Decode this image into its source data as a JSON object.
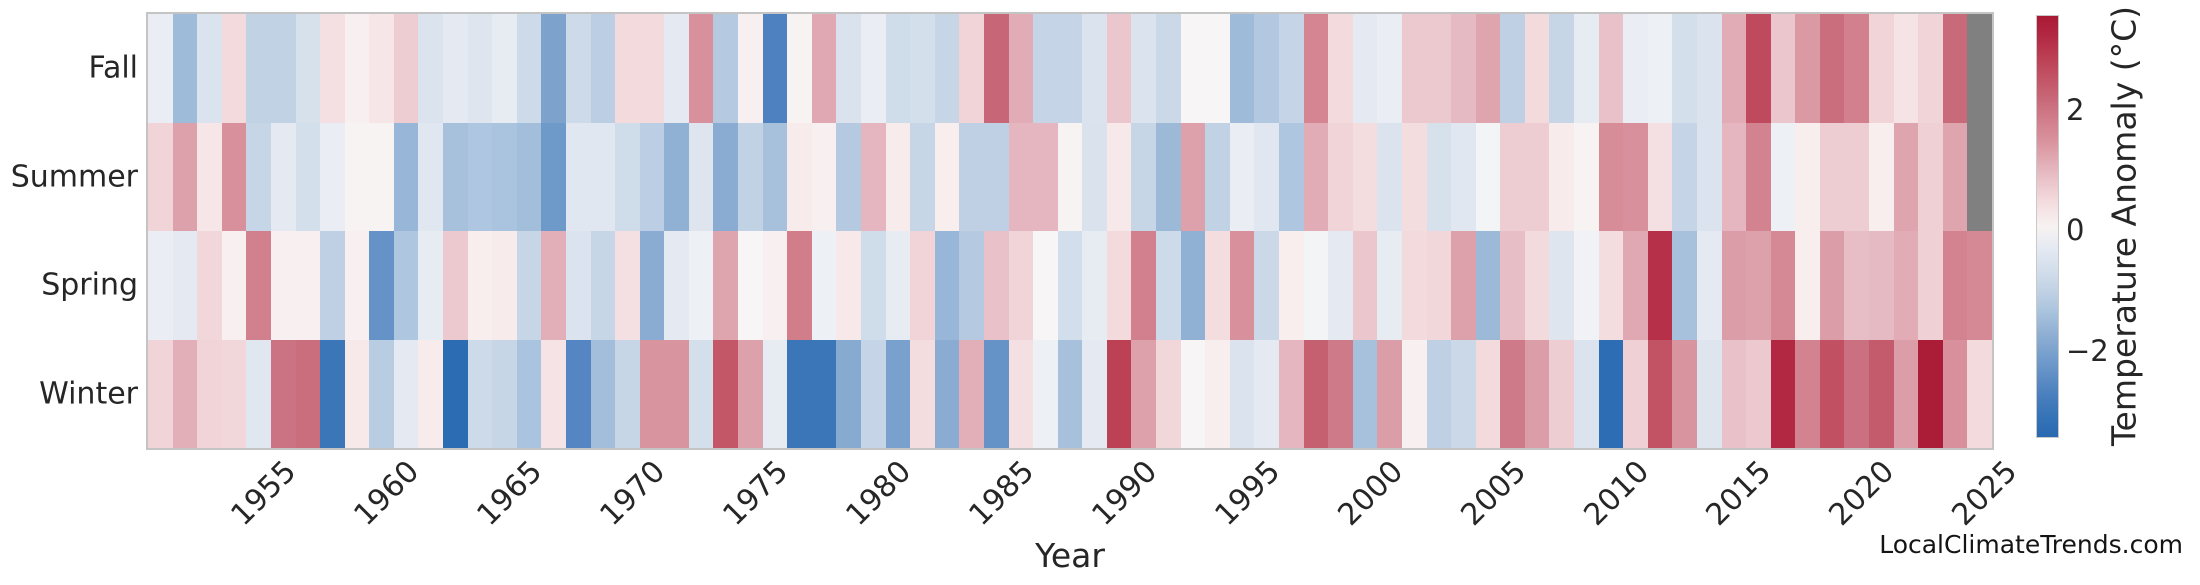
{
  "watermark": "LocalClimateTrends.com",
  "colors": {
    "background": "#ffffff",
    "axis_text": "#262626",
    "plot_border": "#c4c4c4",
    "missing_cell": "#808080"
  },
  "chart_data": {
    "type": "heatmap",
    "xlabel": "Year",
    "rows": [
      "Fall",
      "Summer",
      "Spring",
      "Winter"
    ],
    "year_start": 1951,
    "year_end": 2025,
    "x_ticks": [
      1955,
      1960,
      1965,
      1970,
      1975,
      1980,
      1985,
      1990,
      1995,
      2000,
      2005,
      2010,
      2015,
      2020,
      2025
    ],
    "colorbar": {
      "label": "Temperature Anomaly (°C)",
      "ticks": [
        "2",
        "0",
        "−2"
      ],
      "tick_values": [
        2,
        0,
        -2
      ],
      "vmax": 3.57,
      "vmin": -3.45,
      "missing_color": "#808080"
    },
    "legend_position": "right",
    "grid": false,
    "series": [
      {
        "name": "Fall",
        "values": [
          -0.2,
          -1.5,
          -0.5,
          0.5,
          -1.0,
          -1.0,
          -0.6,
          0.4,
          0.1,
          0.3,
          0.7,
          -0.5,
          -0.3,
          -0.45,
          -0.25,
          -0.8,
          -2.0,
          -0.8,
          -1.1,
          0.5,
          0.5,
          -0.3,
          1.5,
          -1.2,
          0.1,
          -2.7,
          0.05,
          1.2,
          -0.55,
          -0.2,
          -0.75,
          -0.65,
          -0.9,
          0.6,
          2.2,
          1.15,
          -0.95,
          -0.95,
          -0.5,
          0.8,
          -0.5,
          -0.85,
          0.0,
          0.0,
          -1.5,
          -1.25,
          -0.95,
          1.7,
          0.5,
          -0.3,
          -0.2,
          0.75,
          0.75,
          0.95,
          1.25,
          -1.05,
          0.5,
          -0.9,
          -0.25,
          0.85,
          -0.2,
          -0.15,
          -0.65,
          -0.5,
          1.15,
          2.7,
          0.8,
          1.4,
          2.1,
          1.8,
          0.6,
          0.35,
          0.6,
          2.15,
          null
        ]
      },
      {
        "name": "Summer",
        "values": [
          0.6,
          1.3,
          0.3,
          1.5,
          -0.9,
          -0.3,
          -0.65,
          -0.2,
          0.05,
          0.05,
          -1.6,
          -0.4,
          -1.4,
          -1.3,
          -1.35,
          -1.45,
          -2.2,
          -0.4,
          -0.4,
          -0.75,
          -1.1,
          -1.7,
          -0.45,
          -1.8,
          -1.0,
          -1.4,
          0.2,
          0.1,
          -1.2,
          1.0,
          0.2,
          -0.9,
          0.15,
          -1.05,
          -1.05,
          1.0,
          1.0,
          0.05,
          -0.55,
          0.25,
          -0.9,
          -1.55,
          1.3,
          -1.0,
          -0.2,
          -0.4,
          -1.3,
          1.15,
          0.6,
          0.45,
          -0.5,
          0.45,
          -0.6,
          -0.4,
          -0.05,
          0.7,
          0.7,
          0.2,
          0.05,
          1.55,
          1.5,
          0.4,
          -0.95,
          -0.5,
          1.0,
          1.75,
          -0.15,
          0.15,
          0.7,
          0.7,
          0.15,
          1.25,
          0.65,
          1.25,
          null
        ]
      },
      {
        "name": "Spring",
        "values": [
          -0.2,
          -0.3,
          0.55,
          0.1,
          1.8,
          0.1,
          0.1,
          -1.05,
          0.1,
          -2.35,
          -1.3,
          -0.25,
          0.75,
          0.15,
          0.2,
          -0.9,
          1.1,
          -0.5,
          -0.9,
          0.4,
          -1.8,
          -0.3,
          -0.15,
          1.25,
          0.0,
          0.1,
          1.85,
          -0.15,
          0.25,
          -0.75,
          -0.25,
          0.6,
          -1.6,
          -1.2,
          0.85,
          0.6,
          0.0,
          -0.7,
          -0.25,
          0.5,
          1.8,
          -0.8,
          -1.7,
          0.45,
          1.5,
          -0.85,
          0.15,
          -0.05,
          -0.3,
          0.8,
          -0.25,
          0.5,
          0.55,
          1.3,
          -1.55,
          0.9,
          0.5,
          -0.45,
          -0.1,
          0.45,
          1.2,
          3.1,
          -1.4,
          -0.3,
          1.35,
          1.3,
          1.6,
          0.15,
          1.35,
          0.9,
          0.95,
          1.15,
          0.65,
          1.75,
          1.6
        ]
      },
      {
        "name": "Winter",
        "values": [
          0.6,
          1.1,
          0.6,
          0.55,
          -0.4,
          2.0,
          2.1,
          -3.0,
          0.25,
          -1.15,
          -0.3,
          0.2,
          -3.4,
          -0.8,
          -0.9,
          -1.35,
          0.35,
          -2.6,
          -1.45,
          -0.9,
          1.45,
          1.45,
          -0.65,
          2.5,
          1.3,
          -0.25,
          -3.0,
          -3.0,
          -1.85,
          -0.95,
          -2.05,
          0.45,
          -1.8,
          1.1,
          -2.35,
          0.4,
          -0.15,
          -1.4,
          -0.3,
          2.85,
          1.3,
          0.55,
          0.0,
          0.15,
          -0.5,
          -0.3,
          1.0,
          2.3,
          1.9,
          -1.4,
          1.35,
          0.1,
          -1.05,
          -0.85,
          0.5,
          1.9,
          1.35,
          0.7,
          -0.5,
          -3.35,
          0.65,
          2.55,
          1.45,
          -0.45,
          0.85,
          0.75,
          3.25,
          1.75,
          2.6,
          2.05,
          2.4,
          1.35,
          3.5,
          1.5,
          0.5
        ]
      }
    ],
    "palette_stops": [
      [
        -3.6,
        "#2160aa"
      ],
      [
        -3.4,
        "#2b6cb3"
      ],
      [
        -3.0,
        "#3a76b8"
      ],
      [
        -2.6,
        "#5585c2"
      ],
      [
        -2.2,
        "#6e9aca"
      ],
      [
        -1.9,
        "#84a7cf"
      ],
      [
        -1.6,
        "#98b6d7"
      ],
      [
        -1.3,
        "#aec6df"
      ],
      [
        -1.0,
        "#c2d2e5"
      ],
      [
        -0.75,
        "#cfdcea"
      ],
      [
        -0.55,
        "#d9e2ed"
      ],
      [
        -0.35,
        "#e2e8f1"
      ],
      [
        -0.2,
        "#eaeef4"
      ],
      [
        -0.05,
        "#f3f4f6"
      ],
      [
        0.0,
        "#f7f5f5"
      ],
      [
        0.1,
        "#f8f0f0"
      ],
      [
        0.25,
        "#f7e9ea"
      ],
      [
        0.4,
        "#f4e0e2"
      ],
      [
        0.55,
        "#f1d7da"
      ],
      [
        0.7,
        "#eecdd2"
      ],
      [
        0.85,
        "#e9c2c9"
      ],
      [
        1.0,
        "#e5b6bf"
      ],
      [
        1.15,
        "#e1acb5"
      ],
      [
        1.3,
        "#dca1ab"
      ],
      [
        1.45,
        "#d9959f"
      ],
      [
        1.6,
        "#d58995"
      ],
      [
        1.8,
        "#d2808d"
      ],
      [
        2.05,
        "#cb7080"
      ],
      [
        2.3,
        "#c56071"
      ],
      [
        2.55,
        "#c25365"
      ],
      [
        2.85,
        "#bc4155"
      ],
      [
        3.1,
        "#b63049"
      ],
      [
        3.3,
        "#b12540"
      ],
      [
        3.5,
        "#ab1c37"
      ],
      [
        3.6,
        "#a81733"
      ]
    ]
  }
}
